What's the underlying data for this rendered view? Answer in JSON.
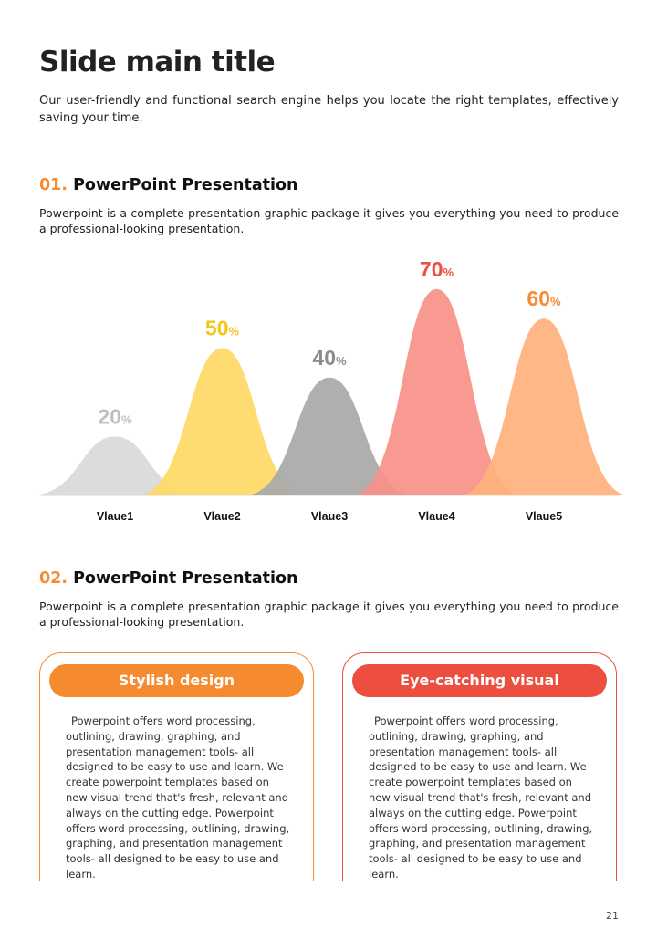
{
  "page": {
    "title": "Slide main title",
    "intro": "Our user-friendly and functional search engine helps you locate the right templates, effectively saving your time.",
    "page_number": "21"
  },
  "section1": {
    "number": "01.",
    "heading": "PowerPoint Presentation",
    "description": "Powerpoint is a complete presentation graphic package it gives you everything you need to produce a professional-looking presentation."
  },
  "section2": {
    "number": "02.",
    "heading": "PowerPoint Presentation",
    "description": "Powerpoint is a complete presentation graphic package it gives you everything you need to produce a professional-looking presentation."
  },
  "chart_data": {
    "type": "area",
    "categories": [
      "Vlaue1",
      "Vlaue2",
      "Vlaue3",
      "Vlaue4",
      "Vlaue5"
    ],
    "values": [
      20,
      50,
      40,
      70,
      60
    ],
    "unit": "%",
    "colors": [
      "#d9d9d9",
      "#ffd966",
      "#a9a9a9",
      "#f8918a",
      "#ffb27d"
    ],
    "label_colors": [
      "#bfbfbf",
      "#f5c518",
      "#8c8c8c",
      "#ec4f3f",
      "#f58a2f"
    ]
  },
  "cards": [
    {
      "title": "Stylish design",
      "text": "Powerpoint offers word processing, outlining, drawing, graphing, and presentation management tools- all designed to be easy to use and learn. We create powerpoint templates based on new visual trend that's fresh, relevant and always on the cutting edge. Powerpoint offers word processing, outlining, drawing, graphing, and presentation management tools- all designed to be easy to use and learn.",
      "color": "#f58a2f"
    },
    {
      "title": "Eye-catching visual",
      "text": "Powerpoint offers word processing, outlining, drawing, graphing, and presentation management tools- all designed to be easy to use and learn. We create powerpoint templates based on new visual trend that's fresh, relevant and always on the cutting edge. Powerpoint offers word processing, outlining, drawing, graphing, and presentation management tools- all designed to be easy to use and learn.",
      "color": "#ec4f3f"
    }
  ]
}
